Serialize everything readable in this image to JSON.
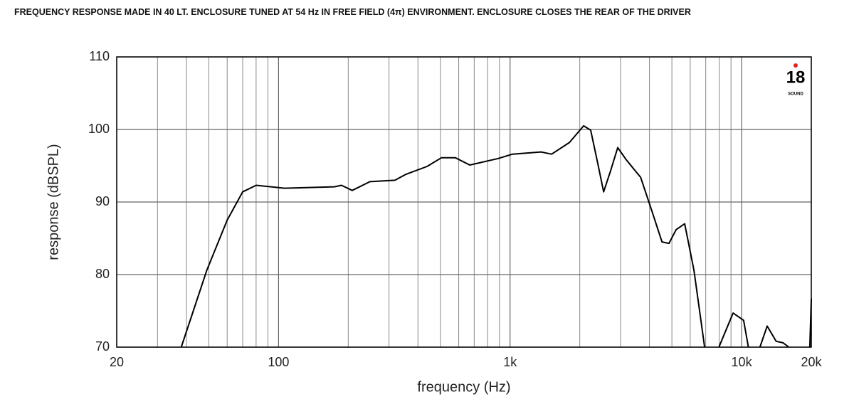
{
  "chart_data": {
    "type": "line",
    "title": "FREQUENCY RESPONSE MADE IN 40 LT. ENCLOSURE TUNED AT 54 Hz IN FREE FIELD (4π) ENVIRONMENT. ENCLOSURE CLOSES THE REAR OF THE DRIVER",
    "x_label": "frequency (Hz)",
    "y_label": "response (dBSPL)",
    "logo": "18",
    "logo_sub": "SOUND",
    "x_log": true,
    "grid": true,
    "xlim": [
      20,
      20000
    ],
    "ylim": [
      70,
      110
    ],
    "xticks": [
      20,
      100,
      {
        "value": 1000,
        "label": "1k"
      },
      {
        "value": 10000,
        "label": "10k"
      },
      {
        "value": 20000,
        "label": "20k"
      }
    ],
    "x_minor_ticks": [
      30,
      40,
      50,
      60,
      70,
      80,
      90,
      200,
      300,
      400,
      500,
      600,
      700,
      800,
      900,
      2000,
      3000,
      4000,
      5000,
      6000,
      7000,
      8000,
      9000
    ],
    "yticks": [
      70,
      80,
      90,
      100,
      110
    ],
    "x": [
      38,
      49,
      60,
      70,
      80,
      106,
      174,
      187,
      208,
      248,
      318,
      354,
      438,
      505,
      581,
      670,
      889,
      1024,
      1360,
      1511,
      1804,
      2079,
      2229,
      2393,
      2535,
      2718,
      2917,
      3177,
      3665,
      4073,
      4531,
      4857,
      5215,
      5680,
      6225,
      6921,
      7400,
      7980,
      9190,
      10200,
      10700,
      11300,
      12000,
      12900,
      14100,
      15100,
      16000,
      18000,
      19700,
      20000
    ],
    "series": [
      {
        "name": "response",
        "color": "#000000",
        "values": [
          70,
          80.6,
          87.5,
          91.4,
          92.3,
          91.9,
          92.1,
          92.3,
          91.6,
          92.8,
          93,
          93.8,
          94.9,
          96.1,
          96.1,
          95.1,
          96,
          96.6,
          96.9,
          96.6,
          98.2,
          100.5,
          99.9,
          95.3,
          91.4,
          94.3,
          97.5,
          95.8,
          93.4,
          89,
          84.5,
          84.3,
          86.2,
          87,
          80.6,
          70,
          null,
          70,
          74.7,
          73.7,
          70,
          null,
          70,
          72.9,
          70.8,
          70.6,
          70,
          null,
          70,
          76.7
        ]
      }
    ]
  }
}
